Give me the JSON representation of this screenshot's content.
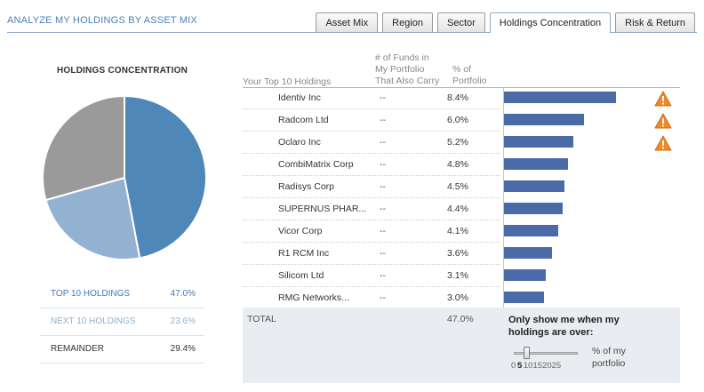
{
  "page": {
    "title": "ANALYZE MY HOLDINGS BY ASSET MIX"
  },
  "tabs": [
    {
      "label": "Asset Mix",
      "active": false
    },
    {
      "label": "Region",
      "active": false
    },
    {
      "label": "Sector",
      "active": false
    },
    {
      "label": "Holdings Concentration",
      "active": true
    },
    {
      "label": "Risk & Return",
      "active": false
    }
  ],
  "chart_data": {
    "type": "pie",
    "title": "HOLDINGS CONCENTRATION",
    "slices": [
      {
        "label": "TOP 10 HOLDINGS",
        "value": 47.0,
        "color": "#4f88b8"
      },
      {
        "label": "NEXT 10 HOLDINGS",
        "value": 23.6,
        "color": "#93b1d1"
      },
      {
        "label": "REMAINDER",
        "value": 29.4,
        "color": "#9a9a9a"
      }
    ]
  },
  "legend": [
    {
      "label": "TOP 10 HOLDINGS",
      "pct": "47.0%",
      "color": "#3f7ab8"
    },
    {
      "label": "NEXT 10 HOLDINGS",
      "pct": "23.6%",
      "color": "#8fb0d3"
    },
    {
      "label": "REMAINDER",
      "pct": "29.4%",
      "color": "#333333"
    }
  ],
  "table": {
    "headers": {
      "holdings": "Your Top 10 Holdings",
      "funds_line1": "# of Funds in",
      "funds_line2": "My Portfolio",
      "funds_line3": "That Also Carry",
      "pct_line1": "% of",
      "pct_line2": "Portfolio"
    },
    "bar_max_pct": 8.4,
    "rows": [
      {
        "name": "Identiv Inc",
        "funds": "--",
        "pct": "8.4%",
        "value": 8.4,
        "warning": true
      },
      {
        "name": "Radcom Ltd",
        "funds": "--",
        "pct": "6.0%",
        "value": 6.0,
        "warning": true
      },
      {
        "name": "Oclaro Inc",
        "funds": "--",
        "pct": "5.2%",
        "value": 5.2,
        "warning": true
      },
      {
        "name": "CombiMatrix Corp",
        "funds": "--",
        "pct": "4.8%",
        "value": 4.8,
        "warning": false
      },
      {
        "name": "Radisys Corp",
        "funds": "--",
        "pct": "4.5%",
        "value": 4.5,
        "warning": false
      },
      {
        "name": "SUPERNUS PHAR...",
        "funds": "--",
        "pct": "4.4%",
        "value": 4.4,
        "warning": false
      },
      {
        "name": "Vicor Corp",
        "funds": "--",
        "pct": "4.1%",
        "value": 4.1,
        "warning": false
      },
      {
        "name": "R1 RCM Inc",
        "funds": "--",
        "pct": "3.6%",
        "value": 3.6,
        "warning": false
      },
      {
        "name": "Silicom Ltd",
        "funds": "--",
        "pct": "3.1%",
        "value": 3.1,
        "warning": false
      },
      {
        "name": "RMG Networks...",
        "funds": "--",
        "pct": "3.0%",
        "value": 3.0,
        "warning": false
      }
    ],
    "total_label": "TOTAL",
    "total_pct": "47.0%"
  },
  "filter": {
    "line1": "Only show me when my",
    "line2": "holdings are over:",
    "ticks": [
      "0",
      "5",
      "10",
      "15",
      "20",
      "25"
    ],
    "selected": "5",
    "unit_line1": "% of my",
    "unit_line2": "portfolio"
  },
  "colors": {
    "bar": "#4a6ba8",
    "warning": "#f08a24",
    "accent": "#4a7fb5"
  }
}
